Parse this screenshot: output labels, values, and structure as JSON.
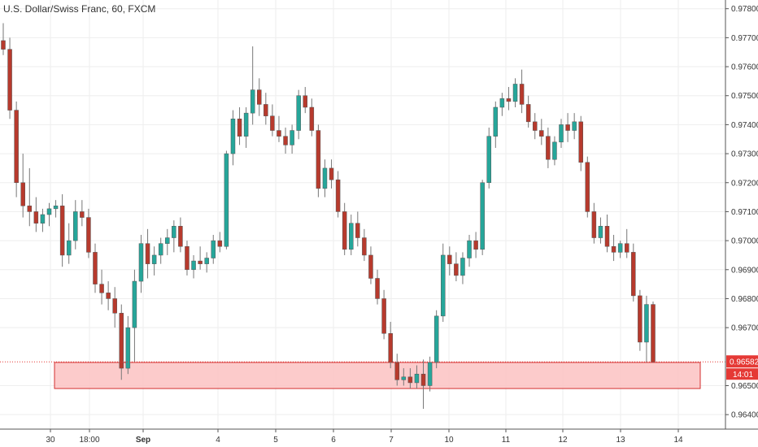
{
  "header": {
    "title": "U.S. Dollar/Swiss Franc, 60, FXCM"
  },
  "colors": {
    "up": "#26a69a",
    "down": "#b73a2d",
    "wick": "#777777",
    "zone_fill": "#fbc2c2",
    "zone_stroke": "#d32f2f",
    "price_line": "#e53935",
    "grid": "#eeeeee"
  },
  "chart_data": {
    "type": "candlestick",
    "title": "U.S. Dollar/Swiss Franc, 60, FXCM",
    "y_ticks": [
      "0.97800",
      "0.97700",
      "0.97600",
      "0.97500",
      "0.97400",
      "0.97300",
      "0.97200",
      "0.97100",
      "0.97000",
      "0.96900",
      "0.96800",
      "0.96700",
      "0.96500",
      "0.96400"
    ],
    "x_ticks": [
      "30",
      "18:00",
      "Sep",
      "4",
      "5",
      "6",
      "7",
      "10",
      "11",
      "12",
      "13",
      "14"
    ],
    "ylim": [
      0.9635,
      0.9783
    ],
    "current_price": {
      "value": "0.96582",
      "countdown": "14:01"
    },
    "support_zone": {
      "from": 0.9649,
      "to": 0.9658
    },
    "ohlc": [
      [
        0.9769,
        0.9775,
        0.9764,
        0.9766
      ],
      [
        0.9766,
        0.977,
        0.9742,
        0.9745
      ],
      [
        0.9745,
        0.9748,
        0.9715,
        0.972
      ],
      [
        0.972,
        0.973,
        0.9708,
        0.9712
      ],
      [
        0.9712,
        0.9725,
        0.9705,
        0.971
      ],
      [
        0.971,
        0.9715,
        0.9703,
        0.9706
      ],
      [
        0.9706,
        0.9711,
        0.9703,
        0.9709
      ],
      [
        0.9709,
        0.9713,
        0.9705,
        0.9711
      ],
      [
        0.9711,
        0.9714,
        0.9708,
        0.9712
      ],
      [
        0.9712,
        0.9716,
        0.9691,
        0.9695
      ],
      [
        0.9695,
        0.9706,
        0.9692,
        0.97
      ],
      [
        0.97,
        0.9714,
        0.9697,
        0.971
      ],
      [
        0.971,
        0.9714,
        0.9705,
        0.9708
      ],
      [
        0.9708,
        0.9711,
        0.9694,
        0.9696
      ],
      [
        0.9696,
        0.9699,
        0.9682,
        0.9685
      ],
      [
        0.9685,
        0.969,
        0.9678,
        0.9682
      ],
      [
        0.9682,
        0.9686,
        0.9676,
        0.968
      ],
      [
        0.968,
        0.9684,
        0.967,
        0.9675
      ],
      [
        0.9675,
        0.9678,
        0.9652,
        0.9656
      ],
      [
        0.9656,
        0.9674,
        0.9654,
        0.967
      ],
      [
        0.967,
        0.969,
        0.9658,
        0.9686
      ],
      [
        0.9686,
        0.9702,
        0.9682,
        0.9699
      ],
      [
        0.9699,
        0.9704,
        0.9687,
        0.9692
      ],
      [
        0.9692,
        0.9698,
        0.9688,
        0.9695
      ],
      [
        0.9695,
        0.9701,
        0.9692,
        0.9699
      ],
      [
        0.9699,
        0.9704,
        0.9695,
        0.9701
      ],
      [
        0.9701,
        0.9707,
        0.9696,
        0.9705
      ],
      [
        0.9705,
        0.9708,
        0.9696,
        0.9698
      ],
      [
        0.9698,
        0.97,
        0.9688,
        0.969
      ],
      [
        0.969,
        0.9695,
        0.9687,
        0.9693
      ],
      [
        0.9693,
        0.9698,
        0.969,
        0.9692
      ],
      [
        0.9692,
        0.9696,
        0.9689,
        0.9694
      ],
      [
        0.9694,
        0.9702,
        0.9692,
        0.97
      ],
      [
        0.97,
        0.9703,
        0.9696,
        0.9698
      ],
      [
        0.9698,
        0.9731,
        0.9697,
        0.973
      ],
      [
        0.973,
        0.9745,
        0.9726,
        0.9742
      ],
      [
        0.9742,
        0.9746,
        0.9733,
        0.9736
      ],
      [
        0.9736,
        0.9746,
        0.9732,
        0.9744
      ],
      [
        0.9744,
        0.9767,
        0.974,
        0.9752
      ],
      [
        0.9752,
        0.9756,
        0.9743,
        0.9747
      ],
      [
        0.9747,
        0.9751,
        0.974,
        0.9743
      ],
      [
        0.9743,
        0.9747,
        0.9736,
        0.9738
      ],
      [
        0.9738,
        0.9743,
        0.9734,
        0.9736
      ],
      [
        0.9736,
        0.9739,
        0.973,
        0.9733
      ],
      [
        0.9733,
        0.974,
        0.973,
        0.9738
      ],
      [
        0.9738,
        0.9752,
        0.9735,
        0.975
      ],
      [
        0.975,
        0.9753,
        0.9744,
        0.9746
      ],
      [
        0.9746,
        0.9749,
        0.9736,
        0.9738
      ],
      [
        0.9738,
        0.974,
        0.9715,
        0.9718
      ],
      [
        0.9718,
        0.9728,
        0.9715,
        0.9725
      ],
      [
        0.9725,
        0.9728,
        0.9718,
        0.9721
      ],
      [
        0.9721,
        0.9724,
        0.9708,
        0.971
      ],
      [
        0.971,
        0.9713,
        0.9695,
        0.9697
      ],
      [
        0.9697,
        0.9709,
        0.9695,
        0.9706
      ],
      [
        0.9706,
        0.971,
        0.9698,
        0.9701
      ],
      [
        0.9701,
        0.9704,
        0.9693,
        0.9695
      ],
      [
        0.9695,
        0.9698,
        0.9685,
        0.9687
      ],
      [
        0.9687,
        0.969,
        0.9678,
        0.968
      ],
      [
        0.968,
        0.9683,
        0.9666,
        0.9668
      ],
      [
        0.9668,
        0.9672,
        0.9656,
        0.9658
      ],
      [
        0.9658,
        0.9661,
        0.965,
        0.9652
      ],
      [
        0.9652,
        0.9656,
        0.965,
        0.9653
      ],
      [
        0.9653,
        0.9656,
        0.9649,
        0.9651
      ],
      [
        0.9651,
        0.9657,
        0.9649,
        0.9654
      ],
      [
        0.9654,
        0.9659,
        0.9642,
        0.965
      ],
      [
        0.965,
        0.966,
        0.9648,
        0.9658
      ],
      [
        0.9658,
        0.9676,
        0.9656,
        0.9674
      ],
      [
        0.9674,
        0.9699,
        0.9672,
        0.9695
      ],
      [
        0.9695,
        0.9698,
        0.9688,
        0.9692
      ],
      [
        0.9692,
        0.9696,
        0.9686,
        0.9688
      ],
      [
        0.9688,
        0.9696,
        0.9685,
        0.9694
      ],
      [
        0.9694,
        0.9702,
        0.9691,
        0.97
      ],
      [
        0.97,
        0.9703,
        0.9694,
        0.9697
      ],
      [
        0.9697,
        0.9721,
        0.9695,
        0.972
      ],
      [
        0.972,
        0.9739,
        0.9718,
        0.9736
      ],
      [
        0.9736,
        0.9748,
        0.9732,
        0.9746
      ],
      [
        0.9746,
        0.9751,
        0.9743,
        0.9749
      ],
      [
        0.9749,
        0.9753,
        0.9745,
        0.9748
      ],
      [
        0.9748,
        0.9756,
        0.9746,
        0.9754
      ],
      [
        0.9754,
        0.9759,
        0.9744,
        0.9747
      ],
      [
        0.9747,
        0.975,
        0.9739,
        0.9741
      ],
      [
        0.9741,
        0.9744,
        0.9735,
        0.9738
      ],
      [
        0.9738,
        0.9742,
        0.9733,
        0.9736
      ],
      [
        0.9736,
        0.9739,
        0.9725,
        0.9728
      ],
      [
        0.9728,
        0.9736,
        0.9726,
        0.9734
      ],
      [
        0.9734,
        0.9742,
        0.9732,
        0.974
      ],
      [
        0.974,
        0.9744,
        0.9734,
        0.9738
      ],
      [
        0.9738,
        0.9744,
        0.9735,
        0.9741
      ],
      [
        0.9741,
        0.9743,
        0.9724,
        0.9727
      ],
      [
        0.9727,
        0.9729,
        0.9708,
        0.971
      ],
      [
        0.971,
        0.9713,
        0.9699,
        0.9701
      ],
      [
        0.9701,
        0.9708,
        0.9699,
        0.9705
      ],
      [
        0.9705,
        0.9709,
        0.9696,
        0.9698
      ],
      [
        0.9698,
        0.9702,
        0.9693,
        0.9696
      ],
      [
        0.9696,
        0.97,
        0.9694,
        0.9699
      ],
      [
        0.9699,
        0.9704,
        0.9694,
        0.9696
      ],
      [
        0.9696,
        0.9699,
        0.9679,
        0.9681
      ],
      [
        0.9681,
        0.9683,
        0.9662,
        0.9665
      ],
      [
        0.9665,
        0.9681,
        0.9658,
        0.9678
      ],
      [
        0.9678,
        0.9679,
        0.9658,
        0.96582
      ]
    ]
  }
}
